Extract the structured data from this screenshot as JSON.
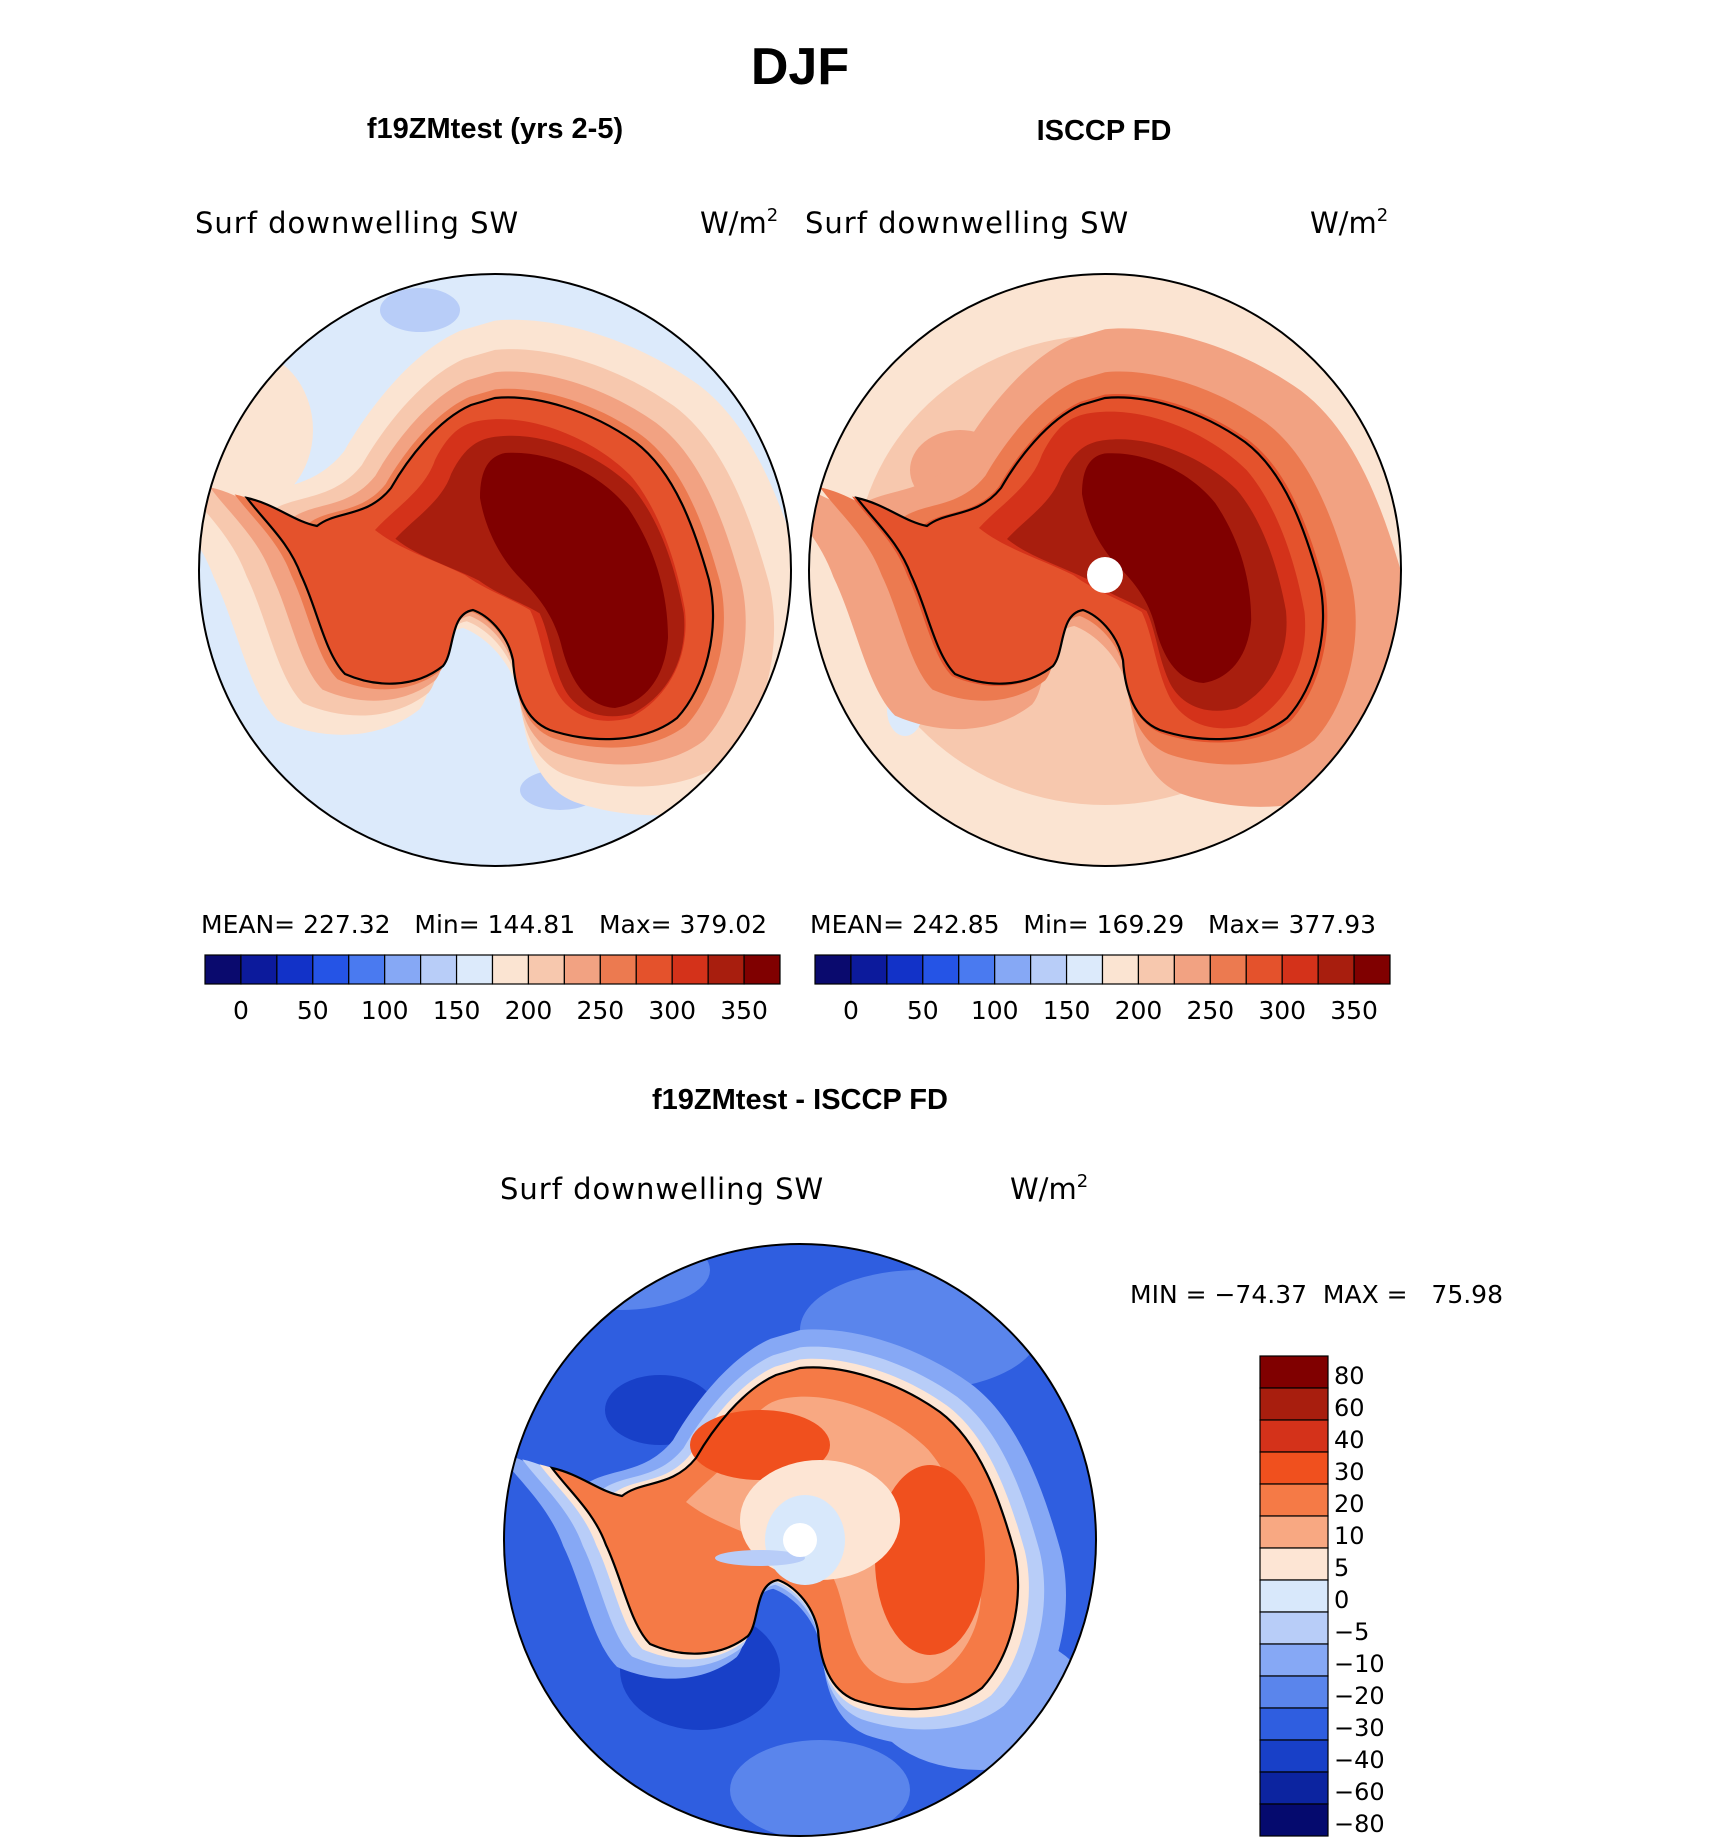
{
  "title": "DJF",
  "panels": [
    {
      "title": "f19ZMtest (yrs 2-5)",
      "variable": "Surf downwelling SW",
      "units": "W/m",
      "units_sup": "2",
      "stats": "MEAN= 227.32   Min= 144.81   Max= 379.02"
    },
    {
      "title": "ISCCP FD",
      "variable": "Surf downwelling SW",
      "units": "W/m",
      "units_sup": "2",
      "stats": "MEAN= 242.85   Min= 169.29   Max= 377.93"
    }
  ],
  "diff_panel": {
    "title": "f19ZMtest - ISCCP FD",
    "variable": "Surf downwelling SW",
    "units": "W/m",
    "units_sup": "2",
    "stats": "MIN = −74.37  MAX =   75.98"
  },
  "chart_data": [
    {
      "type": "heatmap",
      "title": "f19ZMtest (yrs 2-5)",
      "projection": "south-polar-stereographic",
      "variable": "Surf downwelling SW",
      "units": "W/m2",
      "mean": 227.32,
      "min": 144.81,
      "max": 379.02,
      "colorbar_ticks": [
        "0",
        "50",
        "100",
        "150",
        "200",
        "250",
        "300",
        "350"
      ],
      "colorbar_colors": [
        "#0a0a6e",
        "#0c1a9c",
        "#1232c8",
        "#2554e6",
        "#4a7af0",
        "#86a8f5",
        "#b8cdf8",
        "#dceafb",
        "#fbe4d2",
        "#f7c8ae",
        "#f2a282",
        "#ec7a50",
        "#e4522c",
        "#d4321a",
        "#a81e0e",
        "#800000"
      ],
      "regions": {
        "ocean": 170,
        "coast": 240,
        "interior": 370
      }
    },
    {
      "type": "heatmap",
      "title": "ISCCP FD",
      "projection": "south-polar-stereographic",
      "variable": "Surf downwelling SW",
      "units": "W/m2",
      "mean": 242.85,
      "min": 169.29,
      "max": 377.93,
      "colorbar_ticks": [
        "0",
        "50",
        "100",
        "150",
        "200",
        "250",
        "300",
        "350"
      ],
      "colorbar_colors": [
        "#0a0a6e",
        "#0c1a9c",
        "#1232c8",
        "#2554e6",
        "#4a7af0",
        "#86a8f5",
        "#b8cdf8",
        "#dceafb",
        "#fbe4d2",
        "#f7c8ae",
        "#f2a282",
        "#ec7a50",
        "#e4522c",
        "#d4321a",
        "#a81e0e",
        "#800000"
      ],
      "regions": {
        "ocean": 205,
        "coast": 270,
        "interior": 370
      }
    },
    {
      "type": "heatmap",
      "title": "f19ZMtest - ISCCP FD",
      "projection": "south-polar-stereographic",
      "variable": "Surf downwelling SW",
      "units": "W/m2",
      "min": -74.37,
      "max": 75.98,
      "colorbar_ticks": [
        "80",
        "60",
        "40",
        "30",
        "20",
        "10",
        "5",
        "0",
        "−5",
        "−10",
        "−20",
        "−30",
        "−40",
        "−60",
        "−80"
      ],
      "colorbar_colors": [
        "#800000",
        "#a81e0e",
        "#d4321a",
        "#f0501e",
        "#f57a46",
        "#f8a882",
        "#fde5d4",
        "#d8e8fb",
        "#b8cdf8",
        "#86a8f5",
        "#5a85ec",
        "#2f5ee0",
        "#1840c8",
        "#0c24a0",
        "#050a6e"
      ],
      "regions": {
        "ocean": -35,
        "coast": 20,
        "interior": -5
      }
    }
  ]
}
